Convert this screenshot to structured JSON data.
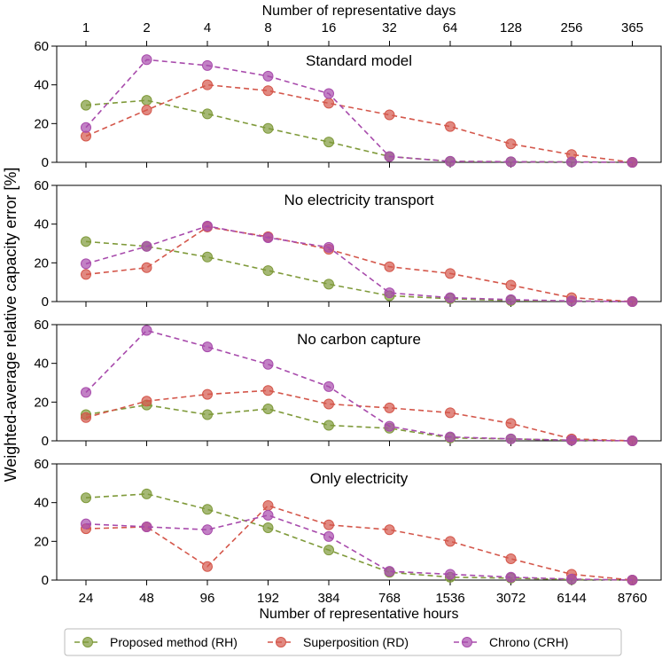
{
  "chart_data": {
    "type": "line",
    "top_axis_label": "Number of representative days",
    "top_tick_labels": [
      "1",
      "2",
      "4",
      "8",
      "16",
      "32",
      "64",
      "128",
      "256",
      "365"
    ],
    "xlabel": "Number of representative hours",
    "x_tick_labels": [
      "24",
      "48",
      "96",
      "192",
      "384",
      "768",
      "1536",
      "3072",
      "6144",
      "8760"
    ],
    "ylabel": "Weighted-average relative capacity error [%]",
    "ylim": [
      0,
      60
    ],
    "y_ticks": [
      0,
      20,
      40,
      60
    ],
    "legend_position": "bottom",
    "series_styles": [
      {
        "name": "Proposed method (RH)",
        "color": "#7f9a3a"
      },
      {
        "name": "Superposition (RD)",
        "color": "#d4574b"
      },
      {
        "name": "Chrono (CRH)",
        "color": "#a84bac"
      }
    ],
    "panels": [
      {
        "title": "Standard model",
        "series": [
          {
            "name": "Proposed method (RH)",
            "values": [
              29.5,
              32,
              25,
              17.5,
              10.5,
              3,
              0.5,
              0.3,
              0.2,
              0
            ]
          },
          {
            "name": "Superposition (RD)",
            "values": [
              13.5,
              27,
              40,
              37,
              30.5,
              24.5,
              18.5,
              9.5,
              4,
              0
            ]
          },
          {
            "name": "Chrono (CRH)",
            "values": [
              18,
              53,
              50,
              44.5,
              35.5,
              3,
              0.5,
              0.3,
              0.2,
              0
            ]
          }
        ]
      },
      {
        "title": "No electricity transport",
        "series": [
          {
            "name": "Proposed method (RH)",
            "values": [
              31,
              28.5,
              23,
              16,
              9,
              3,
              1.5,
              0.5,
              0.3,
              0
            ]
          },
          {
            "name": "Superposition (RD)",
            "values": [
              14,
              17.5,
              38.5,
              33.5,
              27,
              18,
              14.5,
              8.5,
              2,
              0
            ]
          },
          {
            "name": "Chrono (CRH)",
            "values": [
              19.5,
              28.5,
              39,
              33,
              28,
              4.5,
              2,
              1,
              0.3,
              0
            ]
          }
        ]
      },
      {
        "title": "No carbon capture",
        "series": [
          {
            "name": "Proposed method (RH)",
            "values": [
              13.5,
              18.5,
              13.5,
              16.5,
              8,
              6.5,
              1.5,
              1,
              0.3,
              0
            ]
          },
          {
            "name": "Superposition (RD)",
            "values": [
              12,
              20.5,
              24,
              26,
              19,
              17,
              14.5,
              9,
              1,
              0
            ]
          },
          {
            "name": "Chrono (CRH)",
            "values": [
              25,
              57,
              48.5,
              39.5,
              28,
              7.5,
              2,
              1,
              0.3,
              0
            ]
          }
        ]
      },
      {
        "title": "Only electricity",
        "series": [
          {
            "name": "Proposed method (RH)",
            "values": [
              42.5,
              44.5,
              36.5,
              27,
              15.5,
              4,
              1.5,
              1,
              0.3,
              0
            ]
          },
          {
            "name": "Superposition (RD)",
            "values": [
              26.5,
              27.5,
              7,
              38.5,
              28.5,
              26,
              20,
              11,
              3,
              0
            ]
          },
          {
            "name": "Chrono (CRH)",
            "values": [
              29,
              27.5,
              26,
              33.5,
              22.5,
              4.5,
              3,
              1.5,
              0.5,
              0
            ]
          }
        ]
      }
    ]
  }
}
